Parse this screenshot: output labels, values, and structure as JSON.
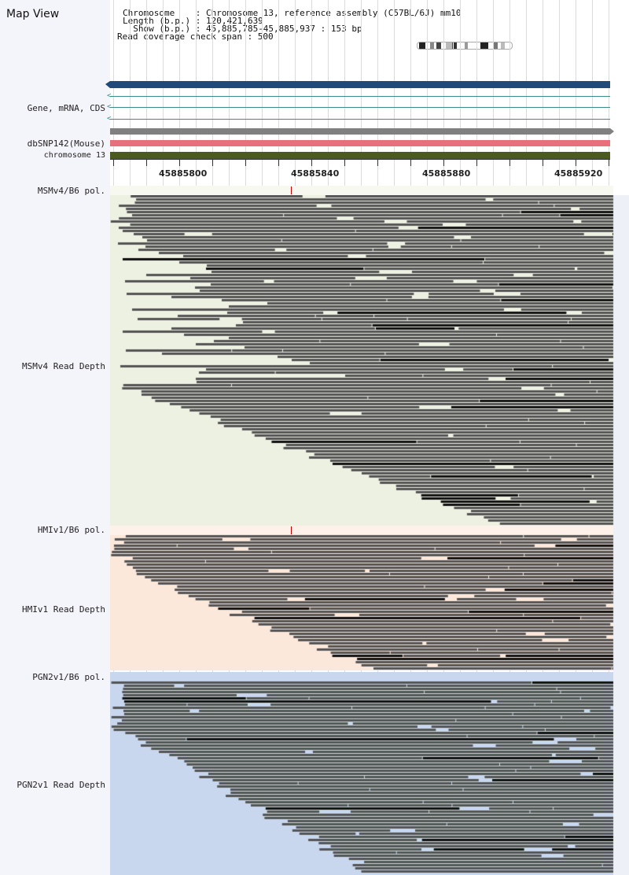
{
  "header": {
    "title": "Map View",
    "chromosome_label": "Chromosome    : Chromosome 13, reference assembly (C57BL/6J) mm10",
    "length_label": "Length (b.p.) : 120,421,639",
    "show_label": "  Show (b.p.) : 45,885,785-45,885,937 : 153 bp",
    "coverage_label": "Read coverage check span : 500"
  },
  "tracks": {
    "gene": "Gene, mRNA, CDS",
    "dbsnp": "dbSNP142(Mouse)",
    "chromosome": "chromosome 13"
  },
  "ruler": {
    "ticks": [
      "45885800",
      "45885840",
      "45885880",
      "45885920"
    ]
  },
  "samples": [
    {
      "pol_label": "MSMv4/B6 pol.",
      "depth_label": "MSMv4 Read Depth",
      "bg": "#edf1e2"
    },
    {
      "pol_label": "HMIv1/B6 pol.",
      "depth_label": "HMIv1 Read Depth",
      "bg": "#fbe8da"
    },
    {
      "pol_label": "PGN2v1/B6 pol.",
      "depth_label": "PGN2v1 Read Depth",
      "bg": "#c9d7ee"
    }
  ],
  "colors": {
    "gene_bar": "#1f4a7a",
    "gene_line": "#3a8a8a",
    "snp_bar": "#e8707a",
    "chromosome_bar": "#4a5a20",
    "read": "#555555",
    "read_dark": "#111111"
  }
}
